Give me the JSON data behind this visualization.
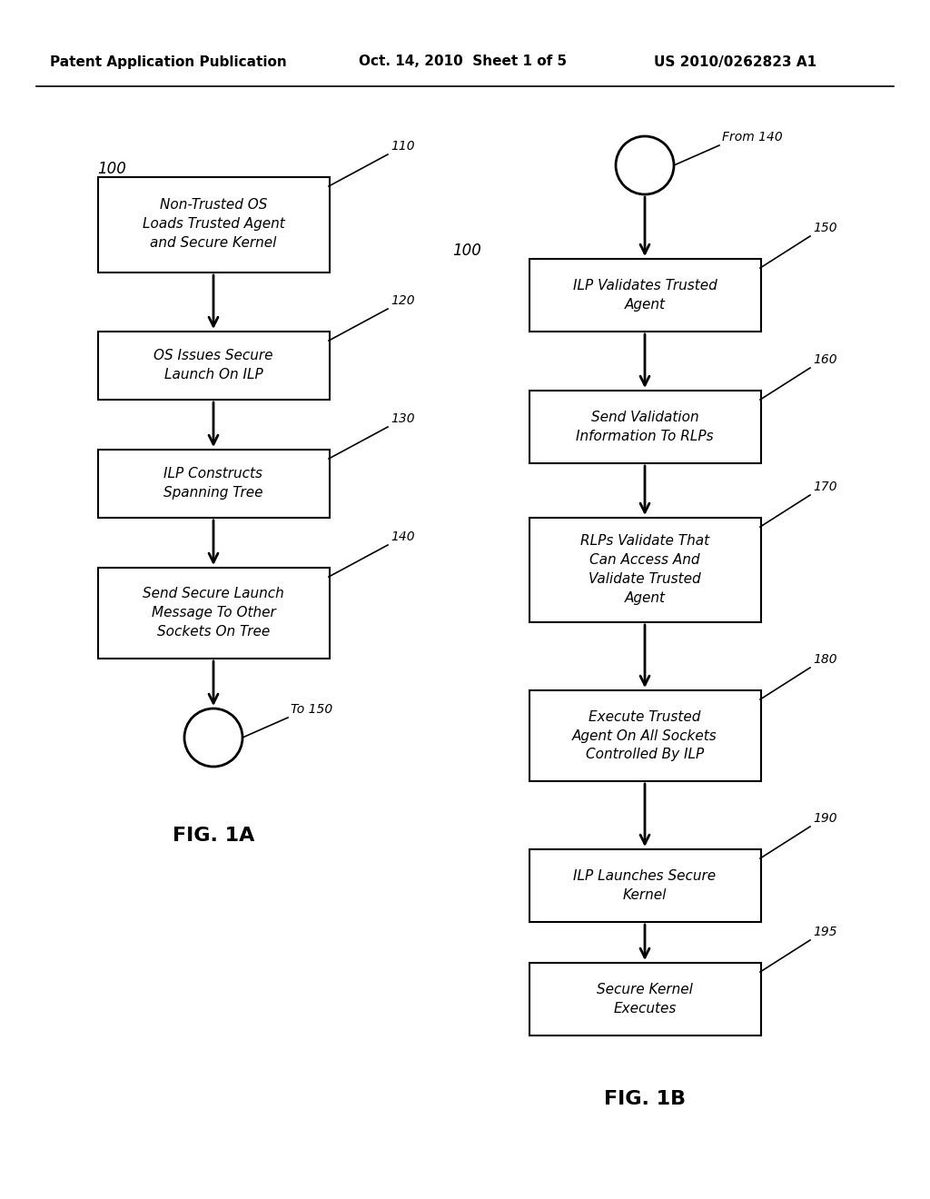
{
  "header_left": "Patent Application Publication",
  "header_mid": "Oct. 14, 2010  Sheet 1 of 5",
  "header_right": "US 2010/0262823 A1",
  "fig1a_label": "FIG. 1A",
  "fig1b_label": "FIG. 1B",
  "ref_100_left": "100",
  "ref_100_right": "100",
  "left_boxes": [
    {
      "id": "110",
      "label": "Non-Trusted OS\nLoads Trusted Agent\nand Secure Kernel"
    },
    {
      "id": "120",
      "label": "OS Issues Secure\nLaunch On ILP"
    },
    {
      "id": "130",
      "label": "ILP Constructs\nSpanning Tree"
    },
    {
      "id": "140",
      "label": "Send Secure Launch\nMessage To Other\nSockets On Tree"
    }
  ],
  "right_boxes": [
    {
      "id": "150",
      "label": "ILP Validates Trusted\nAgent"
    },
    {
      "id": "160",
      "label": "Send Validation\nInformation To RLPs"
    },
    {
      "id": "170",
      "label": "RLPs Validate That\nCan Access And\nValidate Trusted\nAgent"
    },
    {
      "id": "180",
      "label": "Execute Trusted\nAgent On All Sockets\nControlled By ILP"
    },
    {
      "id": "190",
      "label": "ILP Launches Secure\nKernel"
    },
    {
      "id": "195",
      "label": "Secure Kernel\nExecutes"
    }
  ],
  "connector_from": "From 140",
  "connector_to": "To 150",
  "bg_color": "#ffffff",
  "box_color": "#ffffff",
  "border_color": "#000000",
  "text_color": "#000000"
}
